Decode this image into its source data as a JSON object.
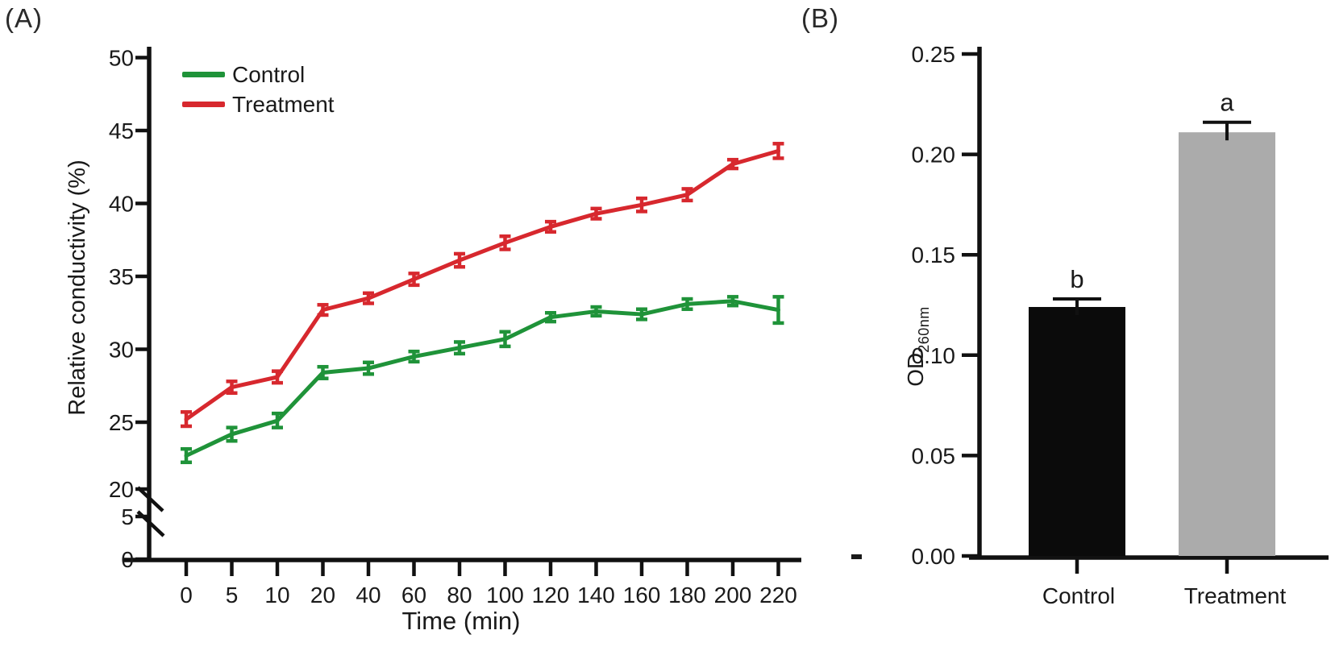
{
  "figure": {
    "panel_a_label": "(A)",
    "panel_b_label": "(B)"
  },
  "panel_a": {
    "y_axis_title": "Relative conductivity (%)",
    "x_axis_title": "Time (min)",
    "legend": {
      "control_label": "Control",
      "treatment_label": "Treatment"
    }
  },
  "panel_b": {
    "y_axis_title_main": "OD",
    "y_axis_title_sub": "260nm"
  },
  "colors": {
    "control_line": "#1f9339",
    "treatment_line": "#d7282e",
    "control_bar": "#0b0b0b",
    "treatment_bar": "#ababab",
    "axis": "#111111"
  },
  "chart_data": [
    {
      "type": "line",
      "panel": "A",
      "xlabel": "Time (min)",
      "ylabel": "Relative conductivity (%)",
      "x_categories": [
        "0",
        "5",
        "10",
        "20",
        "40",
        "60",
        "80",
        "100",
        "120",
        "140",
        "160",
        "180",
        "200",
        "220"
      ],
      "y_ticks_main": [
        50,
        45,
        40,
        35,
        30,
        25,
        20
      ],
      "y_ticks_below_break": [
        5,
        0
      ],
      "axis_break": true,
      "ylim_main": [
        20,
        50
      ],
      "grid": false,
      "legend_position": "top-left",
      "series": [
        {
          "name": "Control",
          "color": "#1f9339",
          "values": [
            22.5,
            24.1,
            25.1,
            28.4,
            28.7,
            29.5,
            30.1,
            30.7,
            32.2,
            32.6,
            32.4,
            33.1,
            33.3,
            32.7
          ],
          "errors": [
            0.5,
            0.5,
            0.5,
            0.4,
            0.4,
            0.35,
            0.4,
            0.5,
            0.3,
            0.3,
            0.35,
            0.35,
            0.3,
            0.9
          ]
        },
        {
          "name": "Treatment",
          "color": "#d7282e",
          "values": [
            25.2,
            27.4,
            28.1,
            32.7,
            33.5,
            34.8,
            36.1,
            37.3,
            38.4,
            39.3,
            39.9,
            40.6,
            42.7,
            43.6
          ],
          "errors": [
            0.5,
            0.4,
            0.4,
            0.35,
            0.35,
            0.4,
            0.45,
            0.45,
            0.35,
            0.35,
            0.45,
            0.4,
            0.3,
            0.5
          ]
        }
      ]
    },
    {
      "type": "bar",
      "panel": "B",
      "ylabel": "OD260nm",
      "categories": [
        "Control",
        "Treatment"
      ],
      "values": [
        0.124,
        0.211
      ],
      "errors": [
        0.004,
        0.005
      ],
      "bar_colors": [
        "#0b0b0b",
        "#ababab"
      ],
      "sig_letters": [
        "b",
        "a"
      ],
      "y_ticks": [
        0.0,
        0.05,
        0.1,
        0.15,
        0.2,
        0.25
      ],
      "ylim": [
        0,
        0.25
      ],
      "grid": false
    }
  ]
}
